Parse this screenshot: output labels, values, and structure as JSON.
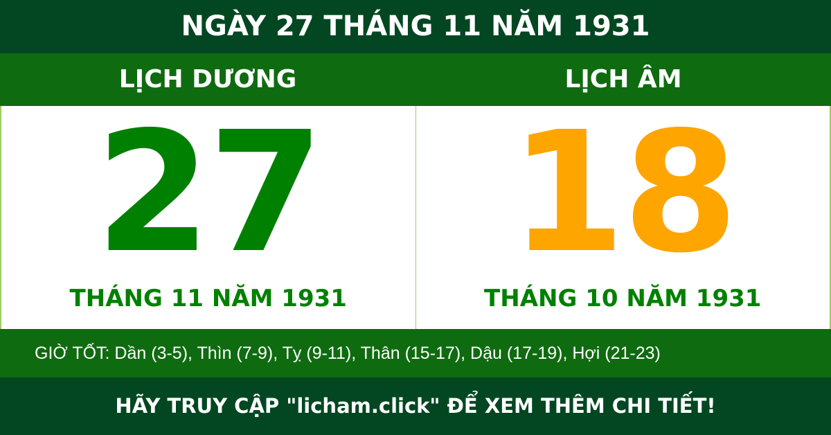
{
  "title": "NGÀY 27 THÁNG 11 NĂM 1931",
  "solar": {
    "label": "LỊCH DƯƠNG",
    "day": "27",
    "month_year": "THÁNG 11 NĂM 1931",
    "color": "#008000"
  },
  "lunar": {
    "label": "LỊCH ÂM",
    "day": "18",
    "month_year": "THÁNG 10 NĂM 1931",
    "color": "#ffa500"
  },
  "good_hours": "GIỜ TỐT: Dần (3-5), Thìn (7-9), Tỵ (9-11), Thân (15-17), Dậu (17-19), Hợi (21-23)",
  "footer": "HÃY TRUY CẬP \"licham.click\" ĐỂ XEM THÊM CHI TIẾT!"
}
